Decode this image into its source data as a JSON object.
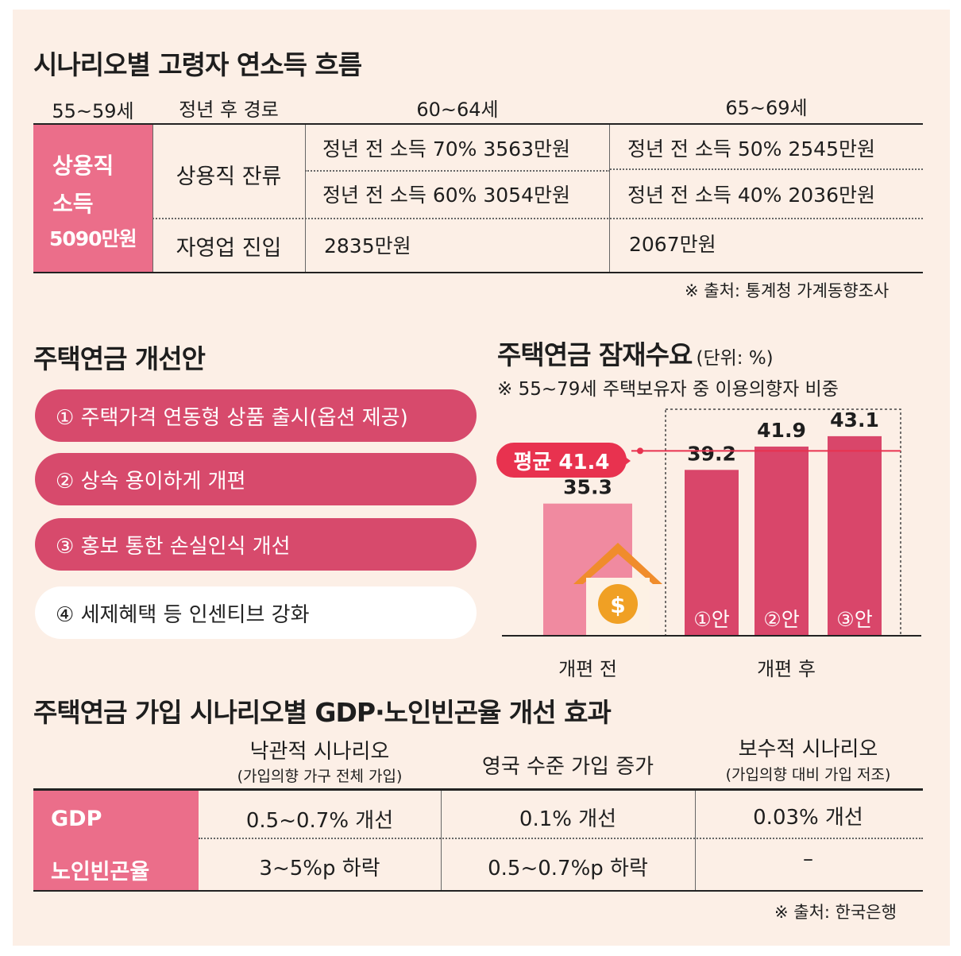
{
  "income_flow": {
    "title": "시나리오별 고령자 연소득 흐름",
    "headers": [
      "55~59세",
      "정년 후 경로",
      "60~64세",
      "65~69세"
    ],
    "start_income": [
      "상용직",
      "소득",
      "5090만원"
    ],
    "paths": [
      {
        "label": "상용직 잔류",
        "age60_64": [
          "정년 전 소득 70% 3563만원",
          "정년 전 소득 60% 3054만원"
        ],
        "age65_69": [
          "정년 전 소득 50% 2545만원",
          "정년 전 소득 40% 2036만원"
        ]
      },
      {
        "label": "자영업 진입",
        "age60_64": [
          "2835만원"
        ],
        "age65_69": [
          "2067만원"
        ]
      }
    ],
    "source": "※ 출처: 통계청 가계동향조사"
  },
  "reform": {
    "title": "주택연금 개선안",
    "items": [
      "① 주택가격 연동형 상품 출시(옵션 제공)",
      "② 상속 용이하게 개편",
      "③ 홍보 통한 손실인식 개선",
      "④ 세제혜택 등 인센티브 강화"
    ]
  },
  "chart_data": {
    "type": "bar",
    "title": "주택연금 잠재수요",
    "unit": "(단위: %)",
    "subtitle": "※ 55~79세 주택보유자 중 이용의향자 비중",
    "categories": [
      "개편 전",
      "①안",
      "②안",
      "③안"
    ],
    "values": [
      35.3,
      39.2,
      41.9,
      43.1
    ],
    "value_labels": [
      "35.3",
      "39.2",
      "41.9",
      "43.1"
    ],
    "group_labels": [
      "개편 전",
      "개편 후"
    ],
    "average": {
      "label": "평균 41.4",
      "value": 41.4
    },
    "colors": {
      "before": "#f08aa0",
      "after": "#d9466a",
      "average": "#e8324f"
    }
  },
  "effects": {
    "title": "주택연금 가입 시나리오별 GDP·노인빈곤율 개선 효과",
    "columns": [
      {
        "name": "낙관적 시나리오",
        "sub": "(가입의향 가구 전체 가입)"
      },
      {
        "name": "영국 수준 가입 증가",
        "sub": ""
      },
      {
        "name": "보수적 시나리오",
        "sub": "(가입의향 대비 가입 저조)"
      }
    ],
    "rows": [
      {
        "label": "GDP",
        "values": [
          "0.5~0.7% 개선",
          "0.1% 개선",
          "0.03% 개선"
        ]
      },
      {
        "label": "노인빈곤율",
        "values": [
          "3~5%p 하락",
          "0.5~0.7%p 하락",
          "–"
        ]
      }
    ],
    "source": "※ 출처: 한국은행"
  },
  "colors": {
    "accent_pink": "#eb6e8a",
    "pill": "#d74a6c",
    "paper": "#fcefe6"
  }
}
